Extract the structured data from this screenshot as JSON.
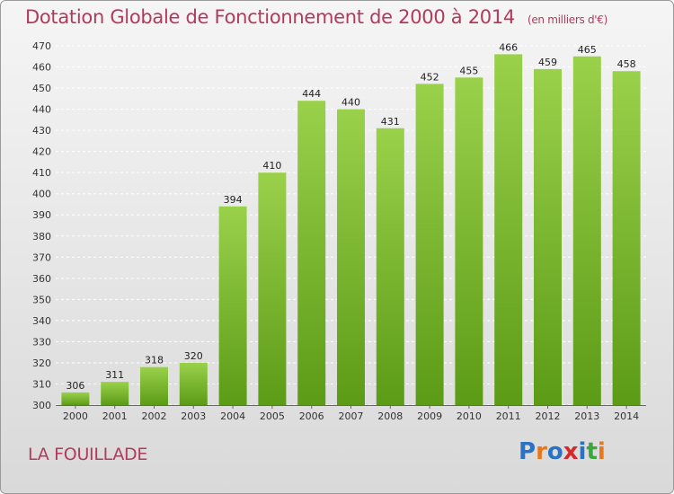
{
  "title": "Dotation Globale de Fonctionnement de 2000 à 2014",
  "unit": "(en milliers d'€)",
  "place": "LA FOUILLADE",
  "logo": "Proxiti",
  "colors": {
    "title": "#b13a5d",
    "bar_top": "#9ad14b",
    "bar_bottom": "#5c9b16",
    "grid": "#ffffff"
  },
  "chart_data": {
    "type": "bar",
    "title": "Dotation Globale de Fonctionnement de 2000 à 2014",
    "unit": "(en milliers d'€)",
    "categories": [
      "2000",
      "2001",
      "2002",
      "2003",
      "2004",
      "2005",
      "2006",
      "2007",
      "2008",
      "2009",
      "2010",
      "2011",
      "2012",
      "2013",
      "2014"
    ],
    "values": [
      306,
      311,
      318,
      320,
      394,
      410,
      444,
      440,
      431,
      452,
      455,
      466,
      459,
      465,
      458
    ],
    "ylim": [
      300,
      470
    ],
    "yticks": [
      300,
      310,
      320,
      330,
      340,
      350,
      360,
      370,
      380,
      390,
      400,
      410,
      420,
      430,
      440,
      450,
      460,
      470
    ],
    "grid": true
  }
}
